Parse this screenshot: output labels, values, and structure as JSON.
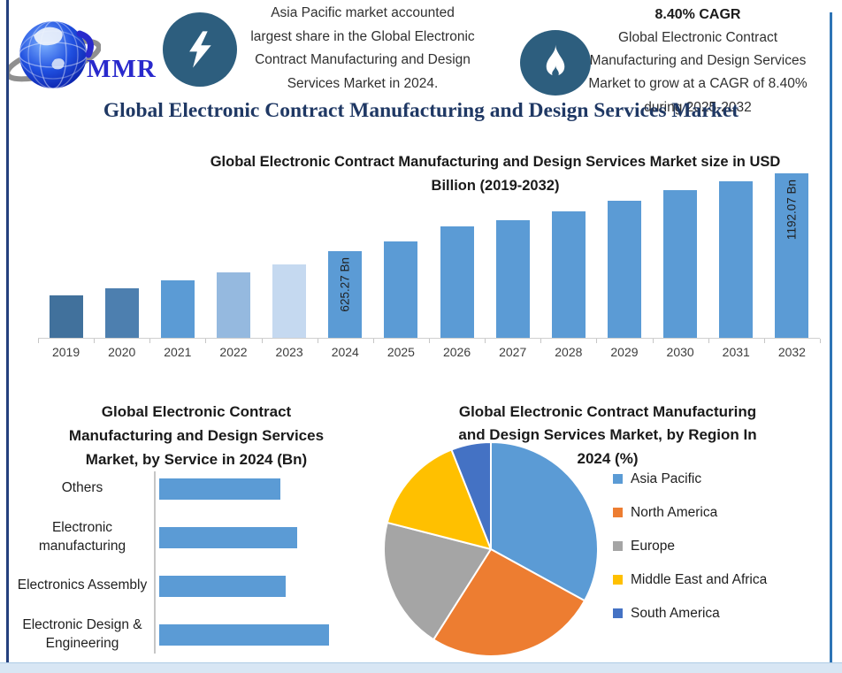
{
  "header": {
    "logo_text": "MMR",
    "left_note": "Asia Pacific market accounted\nlargest share in the Global Electronic\nContract Manufacturing and Design\nServices Market in 2024.",
    "cagr_title": "8.40% CAGR",
    "right_note": "Global Electronic Contract\nManufacturing and Design Services\nMarket to grow at a CAGR of 8.40%\nduring 2025-2032"
  },
  "main_title": "Global Electronic Contract Manufacturing and Design Services Market",
  "accent_colors": {
    "badge_circle": "#2D5E7E",
    "title_navy": "#1F3864",
    "bar_blue": "#5B9BD5",
    "logo_blue": "#2929CC"
  },
  "chart_data": [
    {
      "type": "bar",
      "title": "Global Electronic Contract Manufacturing and Design Services Market size in USD Billion (2019-2032)",
      "categories": [
        "2019",
        "2020",
        "2021",
        "2022",
        "2023",
        "2024",
        "2025",
        "2026",
        "2027",
        "2028",
        "2029",
        "2030",
        "2031",
        "2032"
      ],
      "values": [
        305,
        360,
        415,
        475,
        535,
        625.27,
        700,
        805,
        855,
        920,
        995,
        1070,
        1135,
        1192.07
      ],
      "bar_colors": [
        "#41719C",
        "#4D7FAF",
        "#5B9BD5",
        "#95B9DF",
        "#C5D9F0",
        "#5B9BD5",
        "#5B9BD5",
        "#5B9BD5",
        "#5B9BD5",
        "#5B9BD5",
        "#5B9BD5",
        "#5B9BD5",
        "#5B9BD5",
        "#5B9BD5"
      ],
      "data_labels": {
        "2024": "625.27 Bn",
        "2032": "1192.07 Bn"
      },
      "xlabel": "",
      "ylabel": "",
      "ylim": [
        0,
        1192.07
      ],
      "grid": false,
      "legend_position": "none"
    },
    {
      "type": "bar",
      "orientation": "horizontal",
      "title": "Global Electronic Contract Manufacturing and Design Services Market, by Service in 2024 (Bn)",
      "categories": [
        "Others",
        "Electronic manufacturing",
        "Electronics Assembly",
        "Electronic Design & Engineering"
      ],
      "values": [
        140,
        160,
        147,
        197
      ],
      "bar_color": "#5B9BD5",
      "xlabel": "",
      "ylabel": "",
      "xlim": [
        0,
        200
      ],
      "grid": false,
      "legend_position": "none"
    },
    {
      "type": "pie",
      "title": "Global Electronic Contract Manufacturing and Design Services Market, by Region In 2024 (%)",
      "labels": [
        "Asia Pacific",
        "North America",
        "Europe",
        "Middle East and Africa",
        "South America"
      ],
      "values": [
        33,
        26,
        20,
        15,
        6
      ],
      "colors": [
        "#5B9BD5",
        "#ED7D31",
        "#A5A5A5",
        "#FFC000",
        "#4472C4"
      ],
      "start_angle_deg": 0,
      "legend_position": "right"
    }
  ]
}
